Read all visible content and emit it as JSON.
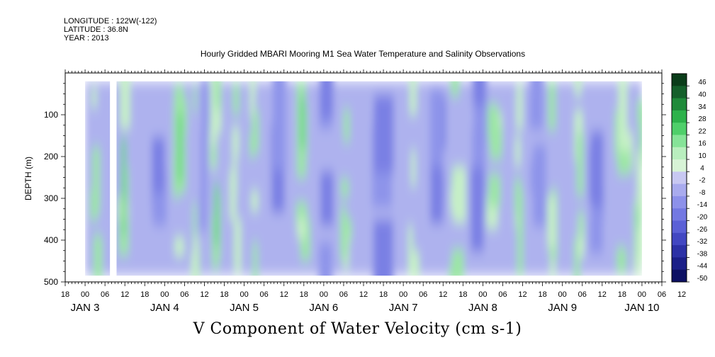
{
  "header": {
    "longitude": "LONGITUDE : 122W(-122)",
    "latitude": "LATITUDE : 36.8N",
    "year": "YEAR : 2013"
  },
  "chart_data": {
    "type": "heatmap",
    "title": "Hourly Gridded MBARI Mooring M1 Sea Water Temperature and Salinity Observations",
    "variable_title": "V Component of Water Velocity (cm s-1)",
    "ylabel": "DEPTH (m)",
    "ylim": [
      500,
      0
    ],
    "y_ticks": [
      100,
      200,
      300,
      400,
      500
    ],
    "x_hour_ticks": [
      "18",
      "00",
      "06",
      "12",
      "18",
      "00",
      "06",
      "12",
      "18",
      "00",
      "06",
      "12",
      "18",
      "00",
      "06",
      "12",
      "18",
      "00",
      "06",
      "12",
      "18",
      "00",
      "06",
      "12",
      "18",
      "00",
      "06",
      "12",
      "18",
      "00",
      "06",
      "12"
    ],
    "x_day_ticks": [
      "JAN 3",
      "JAN 4",
      "JAN 5",
      "JAN 6",
      "JAN 7",
      "JAN 8",
      "JAN 9",
      "JAN 10"
    ],
    "colorbar_ticks": [
      "46",
      "40",
      "34",
      "28",
      "22",
      "16",
      "10",
      "4",
      "-2",
      "-8",
      "-14",
      "-20",
      "-26",
      "-32",
      "-38",
      "-44",
      "-50"
    ],
    "colorbar_range": [
      -50,
      50
    ],
    "colorbar_colors": [
      "#0b3d1a",
      "#15602b",
      "#1f8a3a",
      "#2db24b",
      "#4fcf6a",
      "#86e398",
      "#b9eebe",
      "#d7f3d6",
      "#c8c8f2",
      "#a9abee",
      "#8d91ea",
      "#7378e2",
      "#5b60d6",
      "#4247c2",
      "#2c31a6",
      "#1b1f88",
      "#0c1063"
    ],
    "time_range_hours": [
      -6,
      174
    ],
    "data_start_hour": 0,
    "data_end_hour": 168,
    "data_top_depth": 20,
    "data_bottom_depth": 485,
    "missing_columns_hours": [
      [
        7.5,
        9.5
      ]
    ],
    "green_bands_hours": [
      [
        2,
        4
      ],
      [
        10,
        13
      ],
      [
        27,
        30
      ],
      [
        32,
        33
      ],
      [
        38,
        40
      ],
      [
        44,
        46
      ],
      [
        50,
        52
      ],
      [
        64,
        67
      ],
      [
        77,
        79
      ],
      [
        98,
        100
      ],
      [
        110,
        113
      ],
      [
        121,
        124
      ],
      [
        130,
        132
      ],
      [
        140,
        142
      ],
      [
        148,
        150
      ],
      [
        160,
        164
      ],
      [
        166,
        168
      ]
    ],
    "strong_green_hours": [
      [
        11,
        12
      ],
      [
        28,
        29
      ],
      [
        39,
        40
      ],
      [
        65,
        66
      ]
    ],
    "blue_bands_hours": [
      [
        20,
        24
      ],
      [
        34,
        36
      ],
      [
        56,
        60
      ],
      [
        70,
        74
      ],
      [
        86,
        92
      ],
      [
        104,
        108
      ],
      [
        116,
        120
      ],
      [
        134,
        138
      ],
      [
        152,
        156
      ]
    ]
  }
}
